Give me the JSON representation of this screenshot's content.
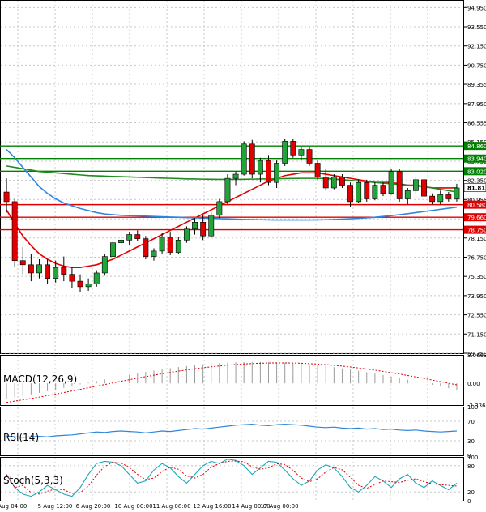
{
  "chart_data": {
    "type": "candlestick",
    "instrument_note": "",
    "price_axis": {
      "ticks": [
        "94.950",
        "93.550",
        "92.150",
        "90.750",
        "89.355",
        "87.950",
        "86.555",
        "85.150",
        "83.750",
        "82.350",
        "80.955",
        "79.550",
        "78.150",
        "76.750",
        "75.350",
        "73.950",
        "72.550",
        "71.150",
        "69.750"
      ],
      "range": [
        69.75,
        95.5
      ]
    },
    "time_axis": {
      "labels": [
        "4 Aug 04:00",
        "5 Aug 12:00",
        "6 Aug 20:00",
        "10 Aug 00:00",
        "11 Aug 08:00",
        "12 Aug 16:00",
        "14 Aug 00:00",
        "17 Aug 00:00"
      ]
    },
    "levels": [
      {
        "label": "84.860",
        "value": 84.86,
        "color": "#008000"
      },
      {
        "label": "83.940",
        "value": 83.94,
        "color": "#008000"
      },
      {
        "label": "83.020",
        "value": 83.02,
        "color": "#008000"
      },
      {
        "label": "80.580",
        "value": 80.58,
        "color": "#e00000"
      },
      {
        "label": "79.660",
        "value": 79.66,
        "color": "#e00000"
      },
      {
        "label": "78.750",
        "value": 78.75,
        "color": "#e00000"
      }
    ],
    "current_price": {
      "label": "81.815",
      "value": 81.815
    },
    "candles": [
      [
        81.5,
        82.5,
        80.0,
        80.8
      ],
      [
        80.8,
        81.0,
        76.0,
        76.5
      ],
      [
        76.5,
        77.5,
        75.5,
        76.2
      ],
      [
        76.2,
        77.0,
        75.0,
        75.6
      ],
      [
        75.6,
        76.6,
        75.2,
        76.2
      ],
      [
        76.2,
        76.6,
        74.8,
        75.2
      ],
      [
        75.2,
        76.5,
        74.9,
        76.0
      ],
      [
        76.0,
        76.8,
        75.0,
        75.5
      ],
      [
        75.5,
        76.0,
        74.5,
        75.0
      ],
      [
        75.0,
        75.5,
        74.2,
        74.6
      ],
      [
        74.6,
        75.2,
        74.3,
        74.8
      ],
      [
        74.8,
        75.8,
        74.6,
        75.6
      ],
      [
        75.6,
        77.0,
        75.4,
        76.8
      ],
      [
        76.8,
        78.0,
        76.5,
        77.8
      ],
      [
        77.8,
        78.4,
        77.3,
        78.0
      ],
      [
        78.0,
        78.6,
        77.6,
        78.4
      ],
      [
        78.4,
        78.7,
        77.9,
        78.1
      ],
      [
        78.1,
        78.3,
        76.6,
        76.8
      ],
      [
        76.8,
        77.4,
        76.5,
        77.2
      ],
      [
        77.2,
        78.5,
        77.0,
        78.2
      ],
      [
        78.2,
        78.6,
        76.9,
        77.1
      ],
      [
        77.1,
        78.2,
        77.0,
        78.0
      ],
      [
        78.0,
        79.0,
        77.8,
        78.8
      ],
      [
        78.8,
        79.6,
        78.4,
        79.3
      ],
      [
        79.3,
        79.8,
        78.0,
        78.3
      ],
      [
        78.3,
        80.0,
        78.2,
        79.8
      ],
      [
        79.8,
        81.0,
        79.6,
        80.8
      ],
      [
        80.8,
        82.8,
        80.6,
        82.5
      ],
      [
        82.5,
        83.0,
        82.0,
        82.8
      ],
      [
        82.8,
        85.2,
        82.7,
        85.0
      ],
      [
        85.0,
        85.3,
        82.5,
        82.8
      ],
      [
        82.8,
        84.0,
        82.2,
        83.8
      ],
      [
        83.8,
        84.2,
        82.0,
        82.2
      ],
      [
        82.2,
        83.8,
        81.8,
        83.6
      ],
      [
        83.6,
        85.4,
        83.4,
        85.2
      ],
      [
        85.2,
        85.4,
        84.0,
        84.2
      ],
      [
        84.2,
        84.8,
        83.8,
        84.6
      ],
      [
        84.6,
        84.8,
        83.4,
        83.6
      ],
      [
        83.6,
        83.8,
        82.4,
        82.6
      ],
      [
        82.6,
        83.2,
        81.6,
        81.8
      ],
      [
        81.8,
        82.8,
        81.7,
        82.6
      ],
      [
        82.6,
        82.8,
        81.8,
        82.0
      ],
      [
        82.0,
        82.2,
        80.4,
        80.8
      ],
      [
        80.8,
        82.4,
        80.7,
        82.2
      ],
      [
        82.2,
        82.4,
        80.8,
        81.0
      ],
      [
        81.0,
        82.2,
        80.9,
        82.0
      ],
      [
        82.0,
        82.2,
        81.2,
        81.4
      ],
      [
        81.4,
        83.2,
        81.3,
        83.0
      ],
      [
        83.0,
        83.2,
        80.8,
        81.0
      ],
      [
        81.0,
        81.8,
        80.6,
        81.6
      ],
      [
        81.6,
        82.6,
        81.4,
        82.4
      ],
      [
        82.4,
        82.6,
        81.0,
        81.2
      ],
      [
        81.2,
        81.4,
        80.6,
        80.8
      ],
      [
        80.8,
        81.6,
        80.6,
        81.3
      ],
      [
        81.3,
        81.5,
        80.8,
        81.0
      ],
      [
        81.0,
        82.1,
        80.8,
        81.8
      ]
    ],
    "moving_averages": [
      {
        "color": "#e00000",
        "values": [
          80.2,
          79.2,
          78.3,
          77.6,
          77.0,
          76.6,
          76.3,
          76.1,
          76.0,
          76.0,
          76.1,
          76.2,
          76.4,
          76.6,
          76.9,
          77.2,
          77.5,
          77.8,
          78.1,
          78.4,
          78.7,
          79.0,
          79.3,
          79.6,
          79.9,
          80.2,
          80.5,
          80.8,
          81.1,
          81.4,
          81.7,
          82.0,
          82.3,
          82.5,
          82.7,
          82.8,
          82.9,
          82.9,
          82.9,
          82.8,
          82.7,
          82.6,
          82.5,
          82.4,
          82.3,
          82.2,
          82.2,
          82.2,
          82.1,
          82.0,
          82.0,
          81.9,
          81.8,
          81.8,
          81.8,
          81.8
        ]
      },
      {
        "color": "#1f8a1f",
        "values": [
          83.4,
          83.3,
          83.2,
          83.1,
          83.0,
          82.95,
          82.9,
          82.85,
          82.8,
          82.75,
          82.7,
          82.68,
          82.66,
          82.64,
          82.62,
          82.6,
          82.58,
          82.56,
          82.54,
          82.52,
          82.5,
          82.48,
          82.46,
          82.45,
          82.44,
          82.43,
          82.42,
          82.42,
          82.42,
          82.43,
          82.44,
          82.45,
          82.46,
          82.47,
          82.48,
          82.49,
          82.5,
          82.5,
          82.5,
          82.48,
          82.45,
          82.4,
          82.35,
          82.3,
          82.25,
          82.2,
          82.15,
          82.1,
          82.05,
          82.0,
          81.95,
          81.9,
          81.8,
          81.7,
          81.6,
          81.5
        ]
      },
      {
        "color": "#2e86de",
        "values": [
          84.6,
          84.0,
          83.3,
          82.6,
          81.9,
          81.4,
          81.0,
          80.7,
          80.5,
          80.3,
          80.15,
          80.0,
          79.9,
          79.85,
          79.8,
          79.78,
          79.76,
          79.74,
          79.72,
          79.7,
          79.68,
          79.66,
          79.64,
          79.62,
          79.6,
          79.58,
          79.56,
          79.54,
          79.52,
          79.5,
          79.49,
          79.48,
          79.47,
          79.46,
          79.46,
          79.46,
          79.46,
          79.46,
          79.47,
          79.48,
          79.5,
          79.52,
          79.55,
          79.58,
          79.62,
          79.66,
          79.72,
          79.78,
          79.85,
          79.92,
          80.0,
          80.08,
          80.16,
          80.24,
          80.32,
          80.4
        ]
      }
    ],
    "indicators": {
      "macd": {
        "label": "MACD(12,26,9)",
        "ticks": [
          "3.0663",
          "0.00",
          "-2.3367"
        ],
        "range": [
          -2.3367,
          3.0663
        ]
      },
      "rsi": {
        "label": "RSI(14)",
        "ticks": [
          "100",
          "70",
          "30",
          "0"
        ],
        "range": [
          0,
          100
        ]
      },
      "stoch": {
        "label": "Stoch(5,3,3)",
        "ticks": [
          "100",
          "80",
          "20",
          "0"
        ],
        "range": [
          0,
          100
        ]
      }
    }
  }
}
